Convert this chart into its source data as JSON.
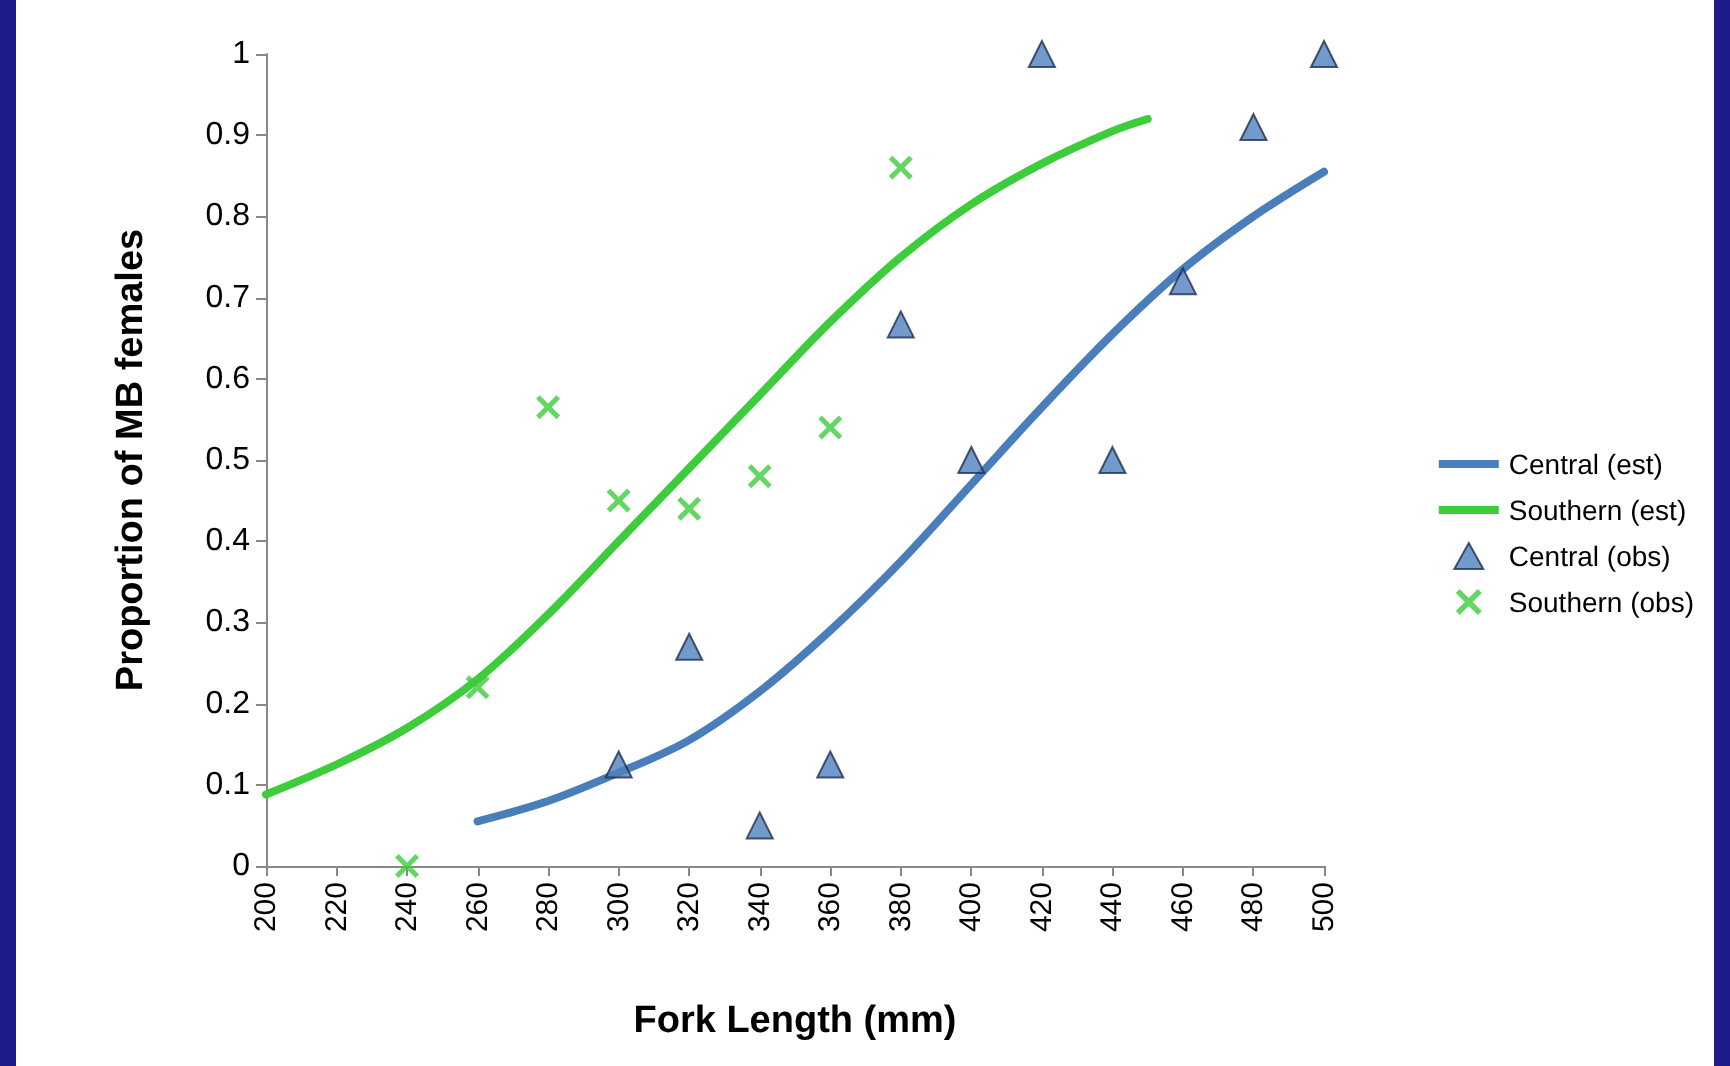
{
  "chart_data": {
    "type": "line",
    "xlabel": "Fork Length (mm)",
    "ylabel": "Proportion of MB females",
    "xlim": [
      200,
      500
    ],
    "xticks": [
      200,
      220,
      240,
      260,
      280,
      300,
      320,
      340,
      360,
      380,
      400,
      420,
      440,
      460,
      480,
      500
    ],
    "ylim": [
      0,
      1
    ],
    "yticks": [
      0,
      0.1,
      0.2,
      0.3,
      0.4,
      0.5,
      0.6,
      0.7,
      0.8,
      0.9,
      1
    ],
    "grid": false,
    "legend": "right",
    "series": [
      {
        "name": "Central (est)",
        "marker": "none",
        "color": "#4a7ebb",
        "x": [
          260,
          280,
          300,
          320,
          340,
          360,
          380,
          400,
          420,
          440,
          460,
          480,
          500
        ],
        "values": [
          0.055,
          0.08,
          0.115,
          0.155,
          0.215,
          0.29,
          0.375,
          0.47,
          0.565,
          0.655,
          0.735,
          0.8,
          0.855
        ]
      },
      {
        "name": "Southern (est)",
        "marker": "none",
        "color": "#3ccc3c",
        "x": [
          200,
          220,
          240,
          260,
          280,
          300,
          320,
          340,
          360,
          380,
          400,
          420,
          440,
          450
        ],
        "values": [
          0.088,
          0.125,
          0.17,
          0.23,
          0.31,
          0.4,
          0.49,
          0.58,
          0.67,
          0.75,
          0.815,
          0.865,
          0.905,
          0.92
        ]
      },
      {
        "name": "Central (obs)",
        "type": "scatter",
        "marker": "triangle",
        "color": "#4f81bd",
        "x": [
          300,
          320,
          340,
          360,
          380,
          400,
          420,
          440,
          460,
          480,
          500
        ],
        "values": [
          0.125,
          0.27,
          0.05,
          0.125,
          0.667,
          0.5,
          1,
          0.5,
          0.72,
          0.91,
          1
        ]
      },
      {
        "name": "Southern (obs)",
        "type": "scatter",
        "marker": "cross",
        "color": "#3ccc3c",
        "x": [
          240,
          260,
          280,
          300,
          320,
          340,
          360,
          380
        ],
        "values": [
          0,
          0.22,
          0.565,
          0.45,
          0.44,
          0.48,
          0.54,
          0.86
        ]
      }
    ]
  }
}
